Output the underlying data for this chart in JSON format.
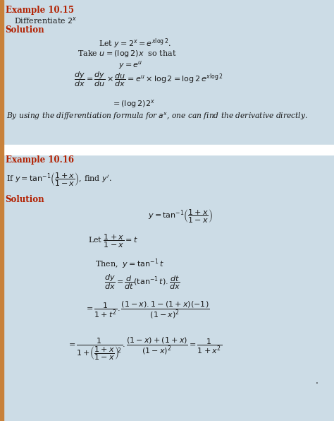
{
  "bg_color": "#ccdce6",
  "white_bg": "#ffffff",
  "red_color": "#b22000",
  "black_color": "#1a1a1a",
  "title1": "Example 10.15",
  "title2": "Example 10.16",
  "fig_width": 4.74,
  "fig_height": 5.96,
  "dpi": 100
}
